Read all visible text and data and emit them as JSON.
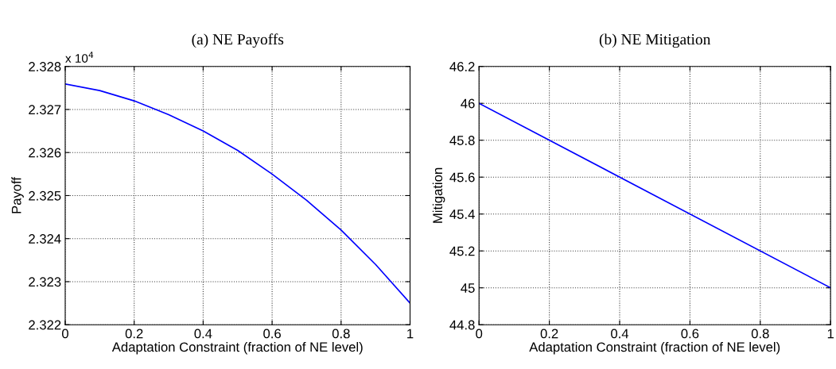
{
  "chart_data": [
    {
      "type": "line",
      "title": "(a) NE Payoffs",
      "xlabel": "Adaptation Constraint (fraction of NE level)",
      "ylabel": "Payoff",
      "x": [
        0,
        0.1,
        0.2,
        0.3,
        0.4,
        0.5,
        0.6,
        0.7,
        0.8,
        0.9,
        1
      ],
      "series": [
        {
          "color": "#0000ff",
          "values": [
            2.32759,
            2.32744,
            2.3272,
            2.32688,
            2.3265,
            2.32605,
            2.3255,
            2.32489,
            2.3242,
            2.3234,
            2.3225
          ]
        }
      ],
      "xlim": [
        0,
        1
      ],
      "xticks": [
        0,
        0.2,
        0.4,
        0.6,
        0.8,
        1
      ],
      "ylim": [
        2.322,
        2.328
      ],
      "yticks": [
        2.322,
        2.323,
        2.324,
        2.325,
        2.326,
        2.327,
        2.328
      ],
      "annotations": [
        "x 10$^{4}$"
      ],
      "grid": true,
      "line_style": "solid",
      "marker": "none"
    },
    {
      "type": "line",
      "title": "(b) NE Mitigation",
      "xlabel": "Adaptation Constraint (fraction of NE level)",
      "ylabel": "Mitigation",
      "x": [
        0,
        1
      ],
      "series": [
        {
          "color": "#0000ff",
          "values": [
            46,
            45
          ]
        }
      ],
      "xlim": [
        0,
        1
      ],
      "xticks": [
        0,
        0.2,
        0.4,
        0.6,
        0.8,
        1
      ],
      "ylim": [
        44.8,
        46.2
      ],
      "yticks": [
        44.8,
        45,
        45.2,
        45.4,
        45.6,
        45.8,
        46,
        46.2
      ],
      "grid": true,
      "line_style": "solid",
      "marker": "none"
    }
  ]
}
